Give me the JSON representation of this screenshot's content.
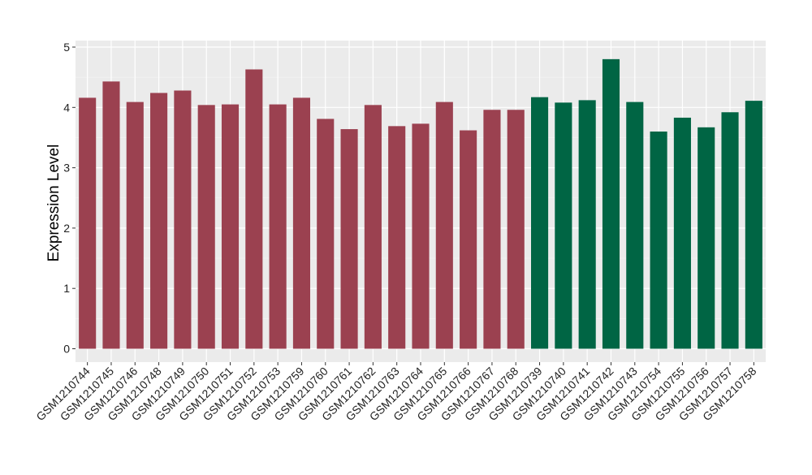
{
  "chart_data": {
    "type": "bar",
    "title": "",
    "xlabel": "",
    "ylabel": "Expression Level",
    "ylim": [
      -0.2,
      5.1
    ],
    "yticks": [
      0,
      1,
      2,
      3,
      4,
      5
    ],
    "grid": true,
    "legend": "none",
    "categories": [
      "GSM1210744",
      "GSM1210745",
      "GSM1210746",
      "GSM1210748",
      "GSM1210749",
      "GSM1210750",
      "GSM1210751",
      "GSM1210752",
      "GSM1210753",
      "GSM1210759",
      "GSM1210760",
      "GSM1210761",
      "GSM1210762",
      "GSM1210763",
      "GSM1210764",
      "GSM1210765",
      "GSM1210766",
      "GSM1210767",
      "GSM1210768",
      "GSM1210739",
      "GSM1210740",
      "GSM1210741",
      "GSM1210742",
      "GSM1210743",
      "GSM1210754",
      "GSM1210755",
      "GSM1210756",
      "GSM1210757",
      "GSM1210758"
    ],
    "values": [
      4.16,
      4.43,
      4.09,
      4.24,
      4.28,
      4.04,
      4.05,
      4.63,
      4.05,
      4.16,
      3.81,
      3.64,
      4.04,
      3.69,
      3.73,
      4.09,
      3.62,
      3.96,
      3.96,
      4.17,
      4.08,
      4.12,
      4.8,
      4.09,
      3.6,
      3.83,
      3.67,
      3.92,
      4.11
    ],
    "groups": [
      0,
      0,
      0,
      0,
      0,
      0,
      0,
      0,
      0,
      0,
      0,
      0,
      0,
      0,
      0,
      0,
      0,
      0,
      0,
      1,
      1,
      1,
      1,
      1,
      1,
      1,
      1,
      1,
      1
    ],
    "group_colors": [
      "#9b4150",
      "#006544"
    ],
    "panel_background": "#ebebeb"
  }
}
